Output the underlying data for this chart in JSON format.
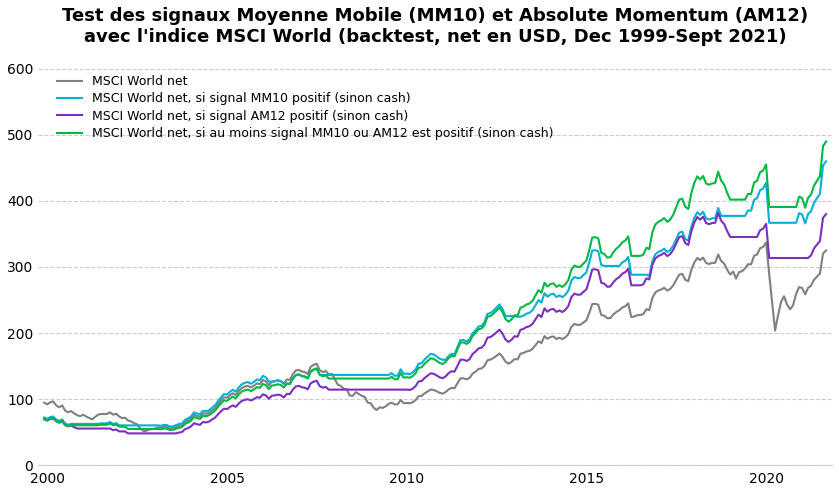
{
  "title_line1": "Test des signaux Moyenne Mobile (MM10) et Absolute Momentum (AM12)",
  "title_line2": "avec l'indice MSCI World (backtest, net en USD, Dec 1999-Sept 2021)",
  "legend_labels": [
    "MSCI World net",
    "MSCI World net, si signal MM10 positif (sinon cash)",
    "MSCI World net, si signal AM12 positif (sinon cash)",
    "MSCI World net, si au moins signal MM10 ou AM12 est positif (sinon cash)"
  ],
  "colors": [
    "#808080",
    "#00b0d8",
    "#7b2fbe",
    "#00b844"
  ],
  "linewidths": [
    1.5,
    1.5,
    1.5,
    1.5
  ],
  "ylim": [
    0,
    620
  ],
  "yticks": [
    0,
    100,
    200,
    300,
    400,
    500,
    600
  ],
  "background_color": "#ffffff",
  "grid_color": "#cccccc",
  "title_fontsize": 13,
  "legend_fontsize": 9
}
